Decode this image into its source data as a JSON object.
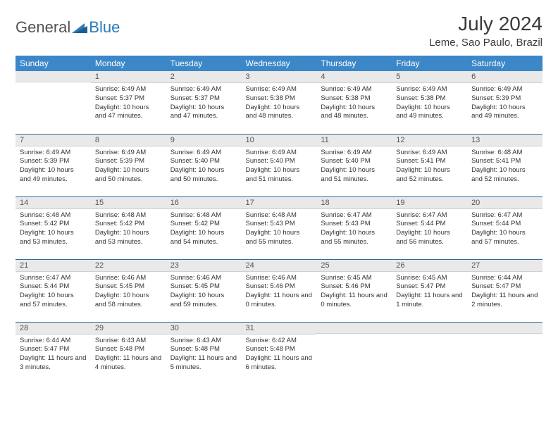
{
  "logo": {
    "part1": "General",
    "part2": "Blue"
  },
  "title": "July 2024",
  "location": "Leme, Sao Paulo, Brazil",
  "day_headers": [
    "Sunday",
    "Monday",
    "Tuesday",
    "Wednesday",
    "Thursday",
    "Friday",
    "Saturday"
  ],
  "colors": {
    "header_bg": "#3b87c8",
    "header_text": "#ffffff",
    "daynum_bg": "#e9e9e9",
    "week_separator": "#2d6aa3",
    "logo_gray": "#535358",
    "logo_blue": "#2a7ab8"
  },
  "fonts": {
    "title_size": 28,
    "location_size": 15,
    "header_size": 12,
    "daynum_size": 11,
    "body_size": 9.5
  },
  "weeks": [
    [
      {
        "n": "",
        "sunrise": "",
        "sunset": "",
        "daylight": ""
      },
      {
        "n": "1",
        "sunrise": "Sunrise: 6:49 AM",
        "sunset": "Sunset: 5:37 PM",
        "daylight": "Daylight: 10 hours and 47 minutes."
      },
      {
        "n": "2",
        "sunrise": "Sunrise: 6:49 AM",
        "sunset": "Sunset: 5:37 PM",
        "daylight": "Daylight: 10 hours and 47 minutes."
      },
      {
        "n": "3",
        "sunrise": "Sunrise: 6:49 AM",
        "sunset": "Sunset: 5:38 PM",
        "daylight": "Daylight: 10 hours and 48 minutes."
      },
      {
        "n": "4",
        "sunrise": "Sunrise: 6:49 AM",
        "sunset": "Sunset: 5:38 PM",
        "daylight": "Daylight: 10 hours and 48 minutes."
      },
      {
        "n": "5",
        "sunrise": "Sunrise: 6:49 AM",
        "sunset": "Sunset: 5:38 PM",
        "daylight": "Daylight: 10 hours and 49 minutes."
      },
      {
        "n": "6",
        "sunrise": "Sunrise: 6:49 AM",
        "sunset": "Sunset: 5:39 PM",
        "daylight": "Daylight: 10 hours and 49 minutes."
      }
    ],
    [
      {
        "n": "7",
        "sunrise": "Sunrise: 6:49 AM",
        "sunset": "Sunset: 5:39 PM",
        "daylight": "Daylight: 10 hours and 49 minutes."
      },
      {
        "n": "8",
        "sunrise": "Sunrise: 6:49 AM",
        "sunset": "Sunset: 5:39 PM",
        "daylight": "Daylight: 10 hours and 50 minutes."
      },
      {
        "n": "9",
        "sunrise": "Sunrise: 6:49 AM",
        "sunset": "Sunset: 5:40 PM",
        "daylight": "Daylight: 10 hours and 50 minutes."
      },
      {
        "n": "10",
        "sunrise": "Sunrise: 6:49 AM",
        "sunset": "Sunset: 5:40 PM",
        "daylight": "Daylight: 10 hours and 51 minutes."
      },
      {
        "n": "11",
        "sunrise": "Sunrise: 6:49 AM",
        "sunset": "Sunset: 5:40 PM",
        "daylight": "Daylight: 10 hours and 51 minutes."
      },
      {
        "n": "12",
        "sunrise": "Sunrise: 6:49 AM",
        "sunset": "Sunset: 5:41 PM",
        "daylight": "Daylight: 10 hours and 52 minutes."
      },
      {
        "n": "13",
        "sunrise": "Sunrise: 6:48 AM",
        "sunset": "Sunset: 5:41 PM",
        "daylight": "Daylight: 10 hours and 52 minutes."
      }
    ],
    [
      {
        "n": "14",
        "sunrise": "Sunrise: 6:48 AM",
        "sunset": "Sunset: 5:42 PM",
        "daylight": "Daylight: 10 hours and 53 minutes."
      },
      {
        "n": "15",
        "sunrise": "Sunrise: 6:48 AM",
        "sunset": "Sunset: 5:42 PM",
        "daylight": "Daylight: 10 hours and 53 minutes."
      },
      {
        "n": "16",
        "sunrise": "Sunrise: 6:48 AM",
        "sunset": "Sunset: 5:42 PM",
        "daylight": "Daylight: 10 hours and 54 minutes."
      },
      {
        "n": "17",
        "sunrise": "Sunrise: 6:48 AM",
        "sunset": "Sunset: 5:43 PM",
        "daylight": "Daylight: 10 hours and 55 minutes."
      },
      {
        "n": "18",
        "sunrise": "Sunrise: 6:47 AM",
        "sunset": "Sunset: 5:43 PM",
        "daylight": "Daylight: 10 hours and 55 minutes."
      },
      {
        "n": "19",
        "sunrise": "Sunrise: 6:47 AM",
        "sunset": "Sunset: 5:44 PM",
        "daylight": "Daylight: 10 hours and 56 minutes."
      },
      {
        "n": "20",
        "sunrise": "Sunrise: 6:47 AM",
        "sunset": "Sunset: 5:44 PM",
        "daylight": "Daylight: 10 hours and 57 minutes."
      }
    ],
    [
      {
        "n": "21",
        "sunrise": "Sunrise: 6:47 AM",
        "sunset": "Sunset: 5:44 PM",
        "daylight": "Daylight: 10 hours and 57 minutes."
      },
      {
        "n": "22",
        "sunrise": "Sunrise: 6:46 AM",
        "sunset": "Sunset: 5:45 PM",
        "daylight": "Daylight: 10 hours and 58 minutes."
      },
      {
        "n": "23",
        "sunrise": "Sunrise: 6:46 AM",
        "sunset": "Sunset: 5:45 PM",
        "daylight": "Daylight: 10 hours and 59 minutes."
      },
      {
        "n": "24",
        "sunrise": "Sunrise: 6:46 AM",
        "sunset": "Sunset: 5:46 PM",
        "daylight": "Daylight: 11 hours and 0 minutes."
      },
      {
        "n": "25",
        "sunrise": "Sunrise: 6:45 AM",
        "sunset": "Sunset: 5:46 PM",
        "daylight": "Daylight: 11 hours and 0 minutes."
      },
      {
        "n": "26",
        "sunrise": "Sunrise: 6:45 AM",
        "sunset": "Sunset: 5:47 PM",
        "daylight": "Daylight: 11 hours and 1 minute."
      },
      {
        "n": "27",
        "sunrise": "Sunrise: 6:44 AM",
        "sunset": "Sunset: 5:47 PM",
        "daylight": "Daylight: 11 hours and 2 minutes."
      }
    ],
    [
      {
        "n": "28",
        "sunrise": "Sunrise: 6:44 AM",
        "sunset": "Sunset: 5:47 PM",
        "daylight": "Daylight: 11 hours and 3 minutes."
      },
      {
        "n": "29",
        "sunrise": "Sunrise: 6:43 AM",
        "sunset": "Sunset: 5:48 PM",
        "daylight": "Daylight: 11 hours and 4 minutes."
      },
      {
        "n": "30",
        "sunrise": "Sunrise: 6:43 AM",
        "sunset": "Sunset: 5:48 PM",
        "daylight": "Daylight: 11 hours and 5 minutes."
      },
      {
        "n": "31",
        "sunrise": "Sunrise: 6:42 AM",
        "sunset": "Sunset: 5:48 PM",
        "daylight": "Daylight: 11 hours and 6 minutes."
      },
      {
        "n": "",
        "sunrise": "",
        "sunset": "",
        "daylight": ""
      },
      {
        "n": "",
        "sunrise": "",
        "sunset": "",
        "daylight": ""
      },
      {
        "n": "",
        "sunrise": "",
        "sunset": "",
        "daylight": ""
      }
    ]
  ]
}
